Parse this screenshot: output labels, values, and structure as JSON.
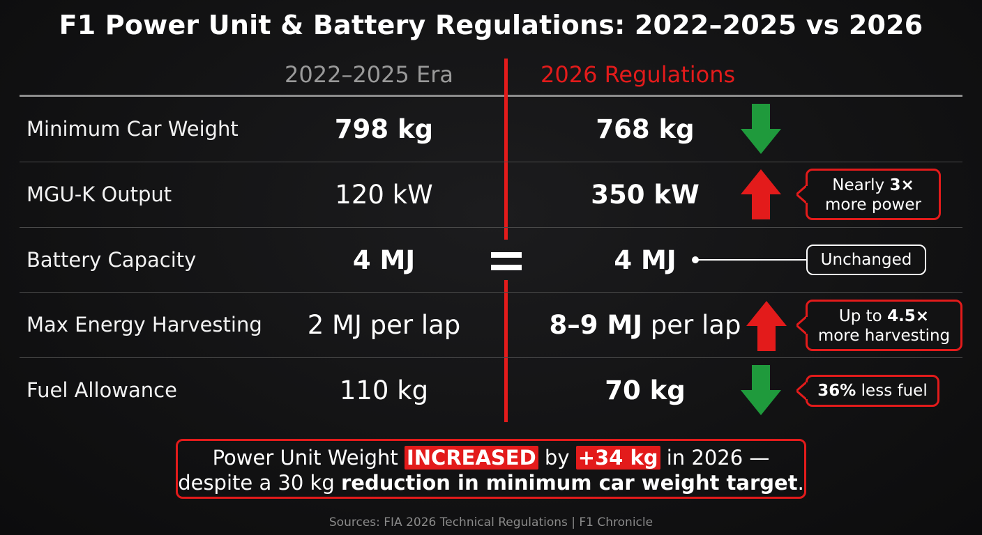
{
  "title": "F1 Power Unit & Battery Regulations: 2022–2025 vs 2026",
  "columns": {
    "old": "2022–2025 Era",
    "new": "2026 Regulations"
  },
  "rows": [
    {
      "label": "Minimum Car Weight",
      "old": "798 kg",
      "new": "768 kg",
      "trend": "down"
    },
    {
      "label": "MGU-K Output",
      "old": "120 kW",
      "new": "350 kW",
      "trend": "up",
      "callout": {
        "pre": "Nearly ",
        "bold": "3×",
        "post": "more power"
      }
    },
    {
      "label": "Battery Capacity",
      "old": "4 MJ",
      "new": "4 MJ",
      "trend": "equal",
      "callout_text": "Unchanged"
    },
    {
      "label": "Max Energy Harvesting",
      "old": "2 MJ per lap",
      "new_bold": "8–9 MJ",
      "new_rest": " per lap",
      "trend": "up",
      "callout": {
        "pre": "Up to ",
        "bold": "4.5×",
        "post": "more harvesting"
      }
    },
    {
      "label": "Fuel Allowance",
      "old": "110 kg",
      "new": "70 kg",
      "trend": "down",
      "callout": {
        "bold": "36%",
        "post": " less fuel"
      }
    }
  ],
  "summary": {
    "part1": "Power Unit Weight ",
    "highlight1": "INCREASED",
    "part2": " by ",
    "highlight2": "+34 kg",
    "part3": " in 2026 —",
    "part4": "despite a 30 kg ",
    "bold": "reduction in minimum car weight target",
    "part5": "."
  },
  "sources": "Sources: FIA 2026 Technical Regulations | F1 Chronicle",
  "colors": {
    "accent_red": "#e31b1b",
    "arrow_green": "#1f9a3c",
    "old_header_grey": "#9a9a9a",
    "background": "#121213"
  },
  "icons": [
    "arrow-down-icon",
    "arrow-up-icon",
    "equals-icon"
  ]
}
